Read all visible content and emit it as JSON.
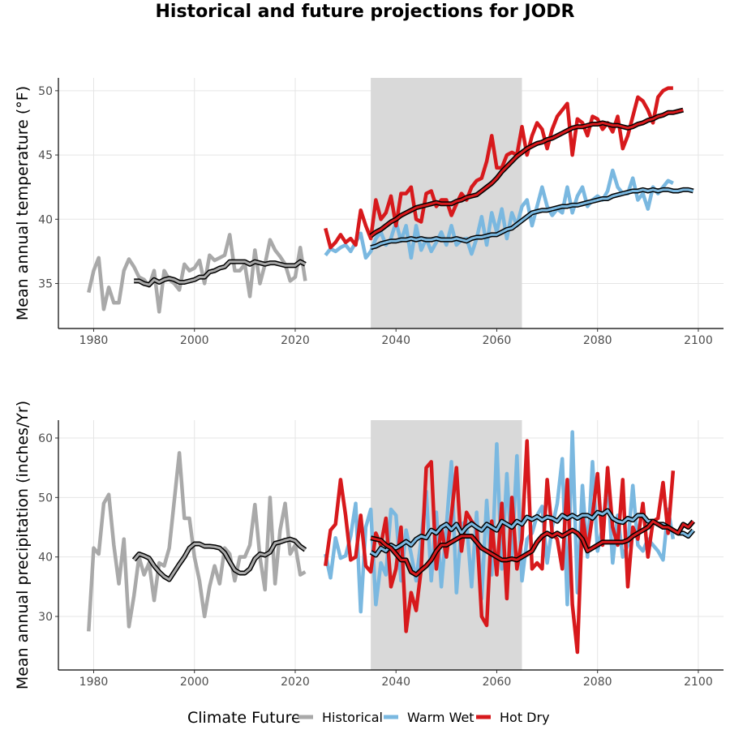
{
  "chart_data": {
    "title": "Historical and future projections for JODR",
    "projection_window": [
      2035,
      2065
    ],
    "legend": {
      "title": "Climate Future",
      "placement": "bottom",
      "entries": [
        {
          "name": "Historical",
          "color": "#a9a9a9"
        },
        {
          "name": "Warm Wet",
          "color": "#7ab8e0"
        },
        {
          "name": "Hot Dry",
          "color": "#d7191c"
        }
      ]
    },
    "colors": {
      "historical": "#a9a9a9",
      "warm_wet": "#7ab8e0",
      "hot_dry": "#d7191c",
      "smooth_outline": "#000000",
      "shade": "#d9d9d9",
      "grid": "#e5e5e5"
    },
    "panels": [
      {
        "type": "line",
        "ylabel": "Mean annual temperature (°F)",
        "xlim": [
          1973,
          2105
        ],
        "ylim": [
          31.5,
          51
        ],
        "xticks": [
          1980,
          2000,
          2020,
          2040,
          2060,
          2080,
          2100
        ],
        "yticks": [
          35,
          40,
          45,
          50
        ],
        "grid": true,
        "series": [
          {
            "name": "Historical",
            "key": "historical",
            "x0": 1979,
            "values": [
              34.3,
              36.0,
              37.0,
              33.0,
              34.7,
              33.5,
              33.5,
              36.0,
              36.9,
              36.3,
              35.5,
              35.3,
              34.8,
              36.0,
              32.8,
              36.0,
              35.3,
              35.0,
              34.5,
              36.5,
              36.0,
              36.2,
              36.8,
              35.0,
              37.2,
              36.8,
              37.0,
              37.2,
              38.8,
              36.0,
              36.0,
              36.5,
              34.0,
              37.6,
              35.0,
              36.5,
              38.4,
              37.6,
              37.1,
              36.5,
              35.2,
              35.5,
              37.8,
              35.2
            ]
          },
          {
            "name": "Historical smoothed",
            "key": "historical",
            "smooth": true,
            "x0": 1988,
            "values": [
              35.2,
              35.2,
              35.0,
              34.9,
              35.3,
              35.1,
              35.3,
              35.4,
              35.3,
              35.1,
              35.1,
              35.2,
              35.3,
              35.5,
              35.5,
              35.9,
              36.0,
              36.2,
              36.3,
              36.7,
              36.7,
              36.7,
              36.7,
              36.5,
              36.7,
              36.6,
              36.5,
              36.6,
              36.6,
              36.5,
              36.4,
              36.4,
              36.4,
              36.7,
              36.5
            ]
          },
          {
            "name": "Warm Wet",
            "key": "warm_wet",
            "x0": 2026,
            "values": [
              37.2,
              37.7,
              37.5,
              37.8,
              38.0,
              37.5,
              38.2,
              38.9,
              37.0,
              37.5,
              38.5,
              39.0,
              38.0,
              38.5,
              39.8,
              38.3,
              39.5,
              37.0,
              39.5,
              37.6,
              38.5,
              37.5,
              38.2,
              39.0,
              38.0,
              39.5,
              38.0,
              38.4,
              38.5,
              37.3,
              38.5,
              40.2,
              38.0,
              40.5,
              39.0,
              40.8,
              38.5,
              40.5,
              39.5,
              41.0,
              41.5,
              39.5,
              41.0,
              42.5,
              41.0,
              40.3,
              40.8,
              40.5,
              42.5,
              40.5,
              41.8,
              42.5,
              41.0,
              41.5,
              41.8,
              41.5,
              42.2,
              43.8,
              42.5,
              42.0,
              42.0,
              43.2,
              41.5,
              42.0,
              40.8,
              42.5,
              42.0,
              42.5,
              43.0,
              42.8
            ]
          },
          {
            "name": "Warm Wet smoothed",
            "key": "warm_wet",
            "smooth": true,
            "x0": 2035,
            "values": [
              37.8,
              37.9,
              38.1,
              38.2,
              38.3,
              38.3,
              38.4,
              38.4,
              38.5,
              38.4,
              38.5,
              38.4,
              38.4,
              38.5,
              38.4,
              38.4,
              38.4,
              38.5,
              38.4,
              38.3,
              38.5,
              38.6,
              38.6,
              38.7,
              38.8,
              38.8,
              39.0,
              39.2,
              39.3,
              39.6,
              39.9,
              40.2,
              40.5,
              40.6,
              40.7,
              40.7,
              40.8,
              40.9,
              41.0,
              41.0,
              41.1,
              41.1,
              41.2,
              41.3,
              41.4,
              41.5,
              41.6,
              41.6,
              41.8,
              41.9,
              42.0,
              42.1,
              42.2,
              42.2,
              42.3,
              42.2,
              42.3,
              42.2,
              42.3,
              42.3,
              42.2,
              42.2,
              42.3,
              42.3,
              42.2
            ]
          },
          {
            "name": "Hot Dry",
            "key": "hot_dry",
            "x0": 2026,
            "values": [
              39.3,
              37.8,
              38.2,
              38.8,
              38.2,
              38.5,
              38.0,
              40.7,
              39.5,
              38.5,
              41.5,
              40.0,
              40.5,
              41.8,
              39.5,
              42.0,
              42.0,
              42.5,
              40.0,
              39.8,
              42.0,
              42.2,
              41.0,
              41.5,
              41.5,
              40.3,
              41.2,
              42.0,
              41.5,
              42.5,
              43.0,
              43.2,
              44.5,
              46.5,
              44.0,
              44.0,
              45.0,
              45.2,
              45.0,
              47.2,
              45.0,
              46.5,
              47.5,
              47.0,
              45.5,
              47.0,
              48.0,
              48.5,
              49.0,
              45.0,
              47.8,
              47.5,
              46.5,
              48.0,
              47.8,
              47.0,
              47.5,
              46.8,
              48.0,
              45.5,
              46.5,
              48.0,
              49.5,
              49.2,
              48.5,
              47.5,
              49.5,
              50.0,
              50.2,
              50.2
            ]
          },
          {
            "name": "Hot Dry smoothed",
            "key": "hot_dry",
            "smooth": true,
            "x0": 2035,
            "values": [
              38.7,
              39.0,
              39.2,
              39.5,
              39.8,
              40.0,
              40.3,
              40.5,
              40.7,
              40.9,
              41.0,
              41.1,
              41.2,
              41.3,
              41.2,
              41.2,
              41.2,
              41.4,
              41.5,
              41.7,
              41.8,
              41.9,
              42.2,
              42.5,
              42.8,
              43.2,
              43.7,
              44.1,
              44.5,
              44.9,
              45.2,
              45.5,
              45.7,
              45.9,
              46.0,
              46.2,
              46.3,
              46.5,
              46.7,
              46.9,
              47.1,
              47.2,
              47.2,
              47.3,
              47.4,
              47.4,
              47.5,
              47.4,
              47.3,
              47.3,
              47.2,
              47.1,
              47.2,
              47.4,
              47.5,
              47.7,
              47.8,
              48.0,
              48.1,
              48.3,
              48.3,
              48.4,
              48.5
            ]
          }
        ]
      },
      {
        "type": "line",
        "ylabel": "Mean annual precipitation (inches/Yr)",
        "xlim": [
          1973,
          2105
        ],
        "ylim": [
          21,
          63
        ],
        "xticks": [
          1980,
          2000,
          2020,
          2040,
          2060,
          2080,
          2100
        ],
        "yticks": [
          30,
          40,
          50,
          60
        ],
        "grid": true,
        "series": [
          {
            "name": "Historical",
            "key": "historical",
            "x0": 1979,
            "values": [
              27.5,
              41.5,
              40.5,
              49.0,
              50.5,
              42.0,
              35.5,
              43.0,
              28.3,
              33.5,
              40.0,
              37.0,
              39.0,
              32.7,
              39.0,
              38.5,
              41.5,
              49.5,
              57.5,
              46.5,
              46.5,
              40.0,
              36.0,
              30.0,
              35.0,
              38.5,
              35.5,
              41.5,
              40.5,
              36.0,
              40.0,
              40.0,
              42.0,
              48.8,
              40.0,
              34.5,
              50.0,
              35.5,
              44.5,
              49.0,
              40.5,
              42.0,
              37.0,
              37.5
            ]
          },
          {
            "name": "Historical smoothed",
            "key": "historical",
            "smooth": true,
            "x0": 1988,
            "values": [
              39.5,
              40.5,
              40.2,
              39.8,
              38.5,
              37.5,
              36.7,
              36.2,
              37.5,
              38.8,
              40.0,
              41.5,
              42.2,
              42.2,
              41.8,
              41.8,
              41.7,
              41.5,
              40.7,
              39.2,
              37.8,
              37.3,
              37.3,
              38.0,
              39.7,
              40.5,
              40.3,
              40.8,
              42.3,
              42.5,
              42.8,
              43.0,
              42.7,
              41.8,
              41.2
            ]
          },
          {
            "name": "Warm Wet",
            "key": "warm_wet",
            "x0": 2026,
            "values": [
              40.5,
              36.5,
              43.2,
              39.8,
              40.2,
              43.5,
              49.0,
              30.8,
              45.0,
              48.0,
              32.0,
              39.0,
              37.0,
              48.0,
              47.0,
              36.0,
              44.5,
              40.5,
              36.0,
              43.0,
              51.0,
              36.0,
              47.5,
              35.0,
              45.0,
              56.0,
              34.0,
              45.5,
              46.0,
              35.0,
              47.5,
              33.0,
              49.5,
              37.0,
              59.0,
              38.0,
              54.0,
              40.0,
              57.0,
              36.0,
              43.0,
              44.0,
              47.0,
              48.5,
              39.0,
              45.0,
              49.0,
              56.5,
              32.0,
              61.0,
              34.0,
              52.0,
              40.0,
              56.0,
              41.0,
              45.0,
              53.0,
              39.0,
              47.0,
              40.0,
              42.0,
              52.0,
              42.0,
              41.0,
              43.0,
              42.0,
              41.0,
              39.5,
              48.0,
              43.0
            ]
          },
          {
            "name": "Warm Wet smoothed",
            "key": "warm_wet",
            "smooth": true,
            "x0": 2035,
            "values": [
              40.8,
              40.3,
              41.5,
              41.0,
              42.0,
              41.5,
              42.0,
              42.6,
              42.0,
              43.0,
              43.5,
              43.2,
              44.5,
              44.0,
              45.0,
              45.5,
              44.6,
              45.5,
              44.0,
              45.0,
              45.6,
              45.0,
              44.5,
              45.5,
              45.0,
              44.5,
              46.0,
              45.5,
              45.0,
              46.0,
              45.5,
              46.7,
              46.3,
              46.8,
              46.2,
              46.7,
              46.5,
              46.0,
              47.0,
              46.5,
              47.0,
              46.5,
              47.0,
              47.0,
              46.5,
              47.5,
              47.2,
              47.8,
              46.5,
              46.0,
              45.8,
              46.5,
              46.2,
              47.0,
              47.0,
              46.0,
              46.0,
              45.5,
              45.5,
              45.0,
              44.5,
              44.0,
              44.0,
              43.5,
              44.5
            ]
          },
          {
            "name": "Hot Dry",
            "key": "hot_dry",
            "x0": 2026,
            "values": [
              38.5,
              44.5,
              45.5,
              53.0,
              47.0,
              39.5,
              40.0,
              47.0,
              38.5,
              37.5,
              44.0,
              42.0,
              46.5,
              35.0,
              38.0,
              45.0,
              27.5,
              34.0,
              31.0,
              38.0,
              55.0,
              56.0,
              38.0,
              45.0,
              40.0,
              47.0,
              55.0,
              41.0,
              47.5,
              46.0,
              45.0,
              30.0,
              28.5,
              46.0,
              37.0,
              49.0,
              33.0,
              50.0,
              38.0,
              43.0,
              59.5,
              38.0,
              39.0,
              38.0,
              53.0,
              44.0,
              43.0,
              38.0,
              53.0,
              32.0,
              24.0,
              47.0,
              41.0,
              47.0,
              54.0,
              42.0,
              55.0,
              45.0,
              42.0,
              53.0,
              35.0,
              45.0,
              43.0,
              49.0,
              40.0,
              46.0,
              46.5,
              52.5,
              44.0,
              54.5
            ]
          },
          {
            "name": "Hot Dry smoothed",
            "key": "hot_dry",
            "smooth": true,
            "x0": 2035,
            "values": [
              43.2,
              43.0,
              42.8,
              42.0,
              41.5,
              40.5,
              39.5,
              39.5,
              37.5,
              37.0,
              37.8,
              38.5,
              39.5,
              41.0,
              42.0,
              42.0,
              42.5,
              43.0,
              43.5,
              43.5,
              43.5,
              42.5,
              41.5,
              41.0,
              40.5,
              40.0,
              39.5,
              39.5,
              39.7,
              39.5,
              40.0,
              40.5,
              41.0,
              42.5,
              43.5,
              44.0,
              43.5,
              44.0,
              43.5,
              44.0,
              44.5,
              44.0,
              43.0,
              41.0,
              41.5,
              42.0,
              42.5,
              42.5,
              42.5,
              42.5,
              42.5,
              42.8,
              43.5,
              44.0,
              44.5,
              45.0,
              46.0,
              45.5,
              45.0,
              45.0,
              44.5,
              44.0,
              45.5,
              45.0,
              46.0
            ]
          }
        ]
      }
    ]
  }
}
